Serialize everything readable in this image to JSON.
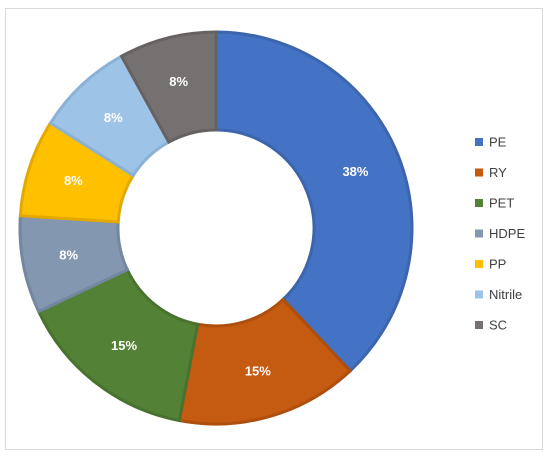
{
  "chart_data": {
    "type": "pie",
    "variant": "donut",
    "title": "",
    "legend_position": "right",
    "categories": [
      "PE",
      "RY",
      "PET",
      "HDPE",
      "PP",
      "Nitrile",
      "SC"
    ],
    "values": [
      38,
      15,
      15,
      8,
      8,
      8,
      8
    ],
    "data_labels": [
      "38%",
      "15%",
      "15%",
      "8%",
      "8%",
      "8%",
      "8%"
    ],
    "colors": [
      "#4472C4",
      "#C55A11",
      "#538135",
      "#8497B0",
      "#FFC000",
      "#9DC3E6",
      "#767171"
    ],
    "stroke_colors": [
      "#3C65AE",
      "#AE4F0E",
      "#49722F",
      "#7586A0",
      "#E3A900",
      "#8BB2D6",
      "#676262"
    ]
  }
}
